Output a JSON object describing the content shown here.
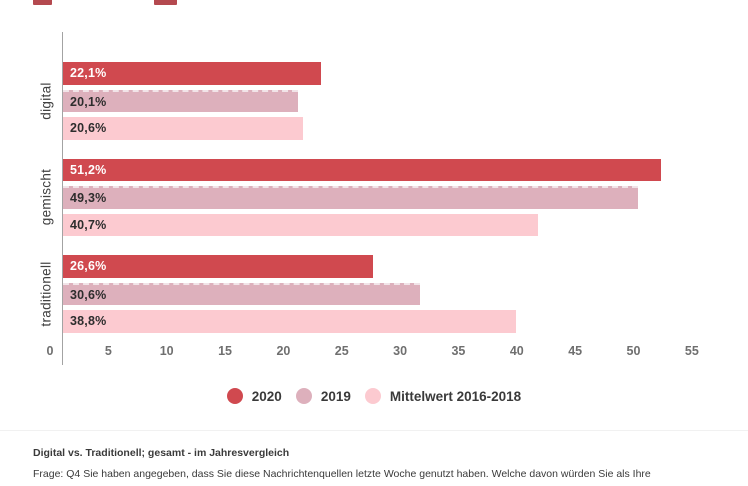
{
  "chart_data": {
    "type": "bar",
    "orientation": "horizontal",
    "title": "",
    "categories": [
      "digital",
      "gemischt",
      "traditionell"
    ],
    "series": [
      {
        "name": "2020",
        "color": "#d0494f",
        "label_color": "#ffffff",
        "values": [
          22.1,
          51.2,
          26.6
        ],
        "labels": [
          "22,1%",
          "51,2%",
          "26,6%"
        ]
      },
      {
        "name": "2019",
        "color": "#ddb0bc",
        "label_color": "#2d2d2d",
        "values": [
          20.1,
          49.3,
          30.6
        ],
        "labels": [
          "20,1%",
          "49,3%",
          "30,6%"
        ]
      },
      {
        "name": "Mittelwert 2016-2018",
        "color": "#fccad0",
        "label_color": "#2d2d2d",
        "values": [
          20.6,
          40.7,
          38.8
        ],
        "labels": [
          "20,6%",
          "40,7%",
          "38,8%"
        ]
      }
    ],
    "x_ticks": [
      0,
      5,
      10,
      15,
      20,
      25,
      30,
      35,
      40,
      45,
      50,
      55
    ],
    "xlim": [
      0,
      55.5
    ],
    "xlabel": "",
    "ylabel": "",
    "grid": "off",
    "legend_position": "bottom-center",
    "axis_color": "#a3a3a3",
    "background": "#ffffff"
  },
  "footer": {
    "title": "Digital vs. Traditionell; gesamt - im Jahresvergleich",
    "question": "Frage: Q4 Sie haben angegeben, dass Sie diese Nachrichtenquellen letzte Woche genutzt haben. Welche davon würden Sie als Ihre"
  }
}
